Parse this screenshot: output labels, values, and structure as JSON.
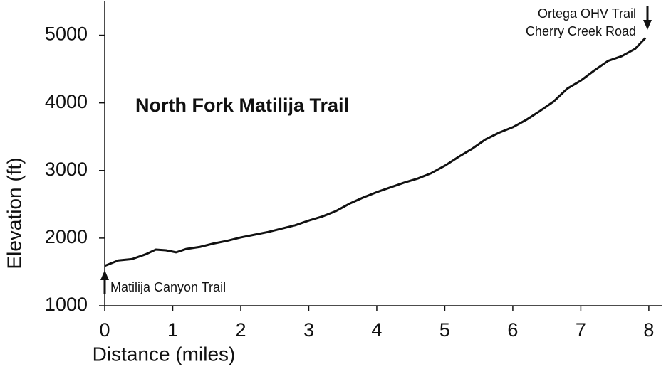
{
  "chart_data": {
    "type": "line",
    "title": "North Fork Matilija Trail",
    "x_label": "Distance (miles)",
    "y_label": "Elevation (ft)",
    "x": [
      0,
      0.2,
      0.4,
      0.6,
      0.75,
      0.9,
      1.05,
      1.2,
      1.4,
      1.6,
      1.8,
      2.0,
      2.2,
      2.4,
      2.6,
      2.8,
      3.0,
      3.2,
      3.4,
      3.6,
      3.8,
      4.0,
      4.2,
      4.4,
      4.6,
      4.8,
      5.0,
      5.2,
      5.4,
      5.6,
      5.8,
      6.0,
      6.2,
      6.4,
      6.6,
      6.8,
      7.0,
      7.2,
      7.4,
      7.6,
      7.8,
      7.95
    ],
    "series": [
      {
        "name": "Elevation",
        "color": "#111111",
        "values": [
          1590,
          1670,
          1690,
          1760,
          1830,
          1820,
          1790,
          1840,
          1870,
          1920,
          1960,
          2010,
          2050,
          2090,
          2140,
          2190,
          2260,
          2320,
          2400,
          2510,
          2600,
          2680,
          2750,
          2820,
          2880,
          2960,
          3070,
          3200,
          3320,
          3460,
          3560,
          3640,
          3750,
          3880,
          4020,
          4210,
          4330,
          4480,
          4620,
          4690,
          4800,
          4960
        ]
      }
    ],
    "annotations": [
      "Matilija Canyon Trail",
      "Ortega OHV Trail",
      "Cherry Creek Road"
    ],
    "xlim": [
      0,
      8.2
    ],
    "xticks": [
      0,
      1,
      2,
      3,
      4,
      5,
      6,
      7,
      8
    ],
    "ylim": [
      1000,
      5500
    ],
    "yticks": [
      1000,
      2000,
      3000,
      4000,
      5000
    ],
    "grid": false
  }
}
